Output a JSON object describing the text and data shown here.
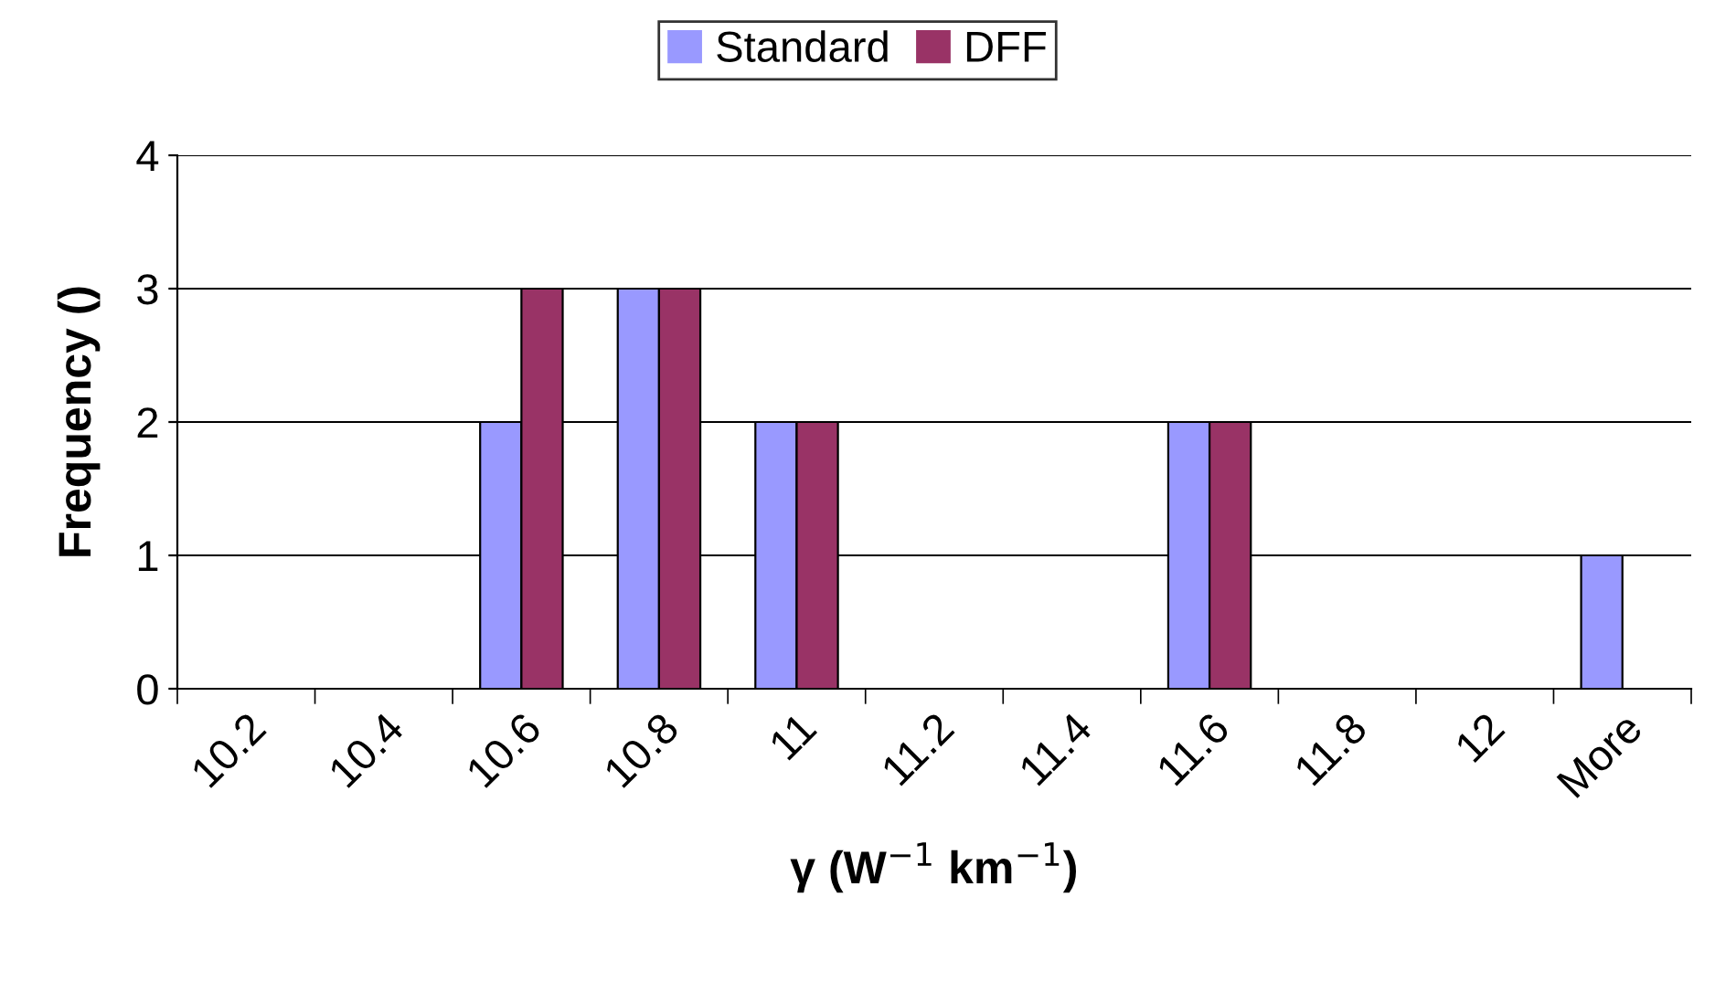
{
  "chart_data": {
    "type": "bar",
    "xlabel": "γ (W$^{−1}$ km$^{−1}$)",
    "ylabel": "Frequency ()",
    "categories": [
      "10.2",
      "10.4",
      "10.6",
      "10.8",
      "11",
      "11.2",
      "11.4",
      "11.6",
      "11.8",
      "12",
      "More"
    ],
    "series": [
      {
        "name": "Standard",
        "color": "#9999ff",
        "values": [
          0,
          0,
          2,
          3,
          2,
          0,
          0,
          2,
          0,
          0,
          1
        ]
      },
      {
        "name": "DFF",
        "color": "#993366",
        "values": [
          0,
          0,
          3,
          3,
          2,
          0,
          0,
          2,
          0,
          0,
          0
        ]
      }
    ],
    "ylim": [
      0,
      4
    ],
    "yticks": [
      0,
      1,
      2,
      3,
      4
    ],
    "grid": "y",
    "legend": "top"
  }
}
